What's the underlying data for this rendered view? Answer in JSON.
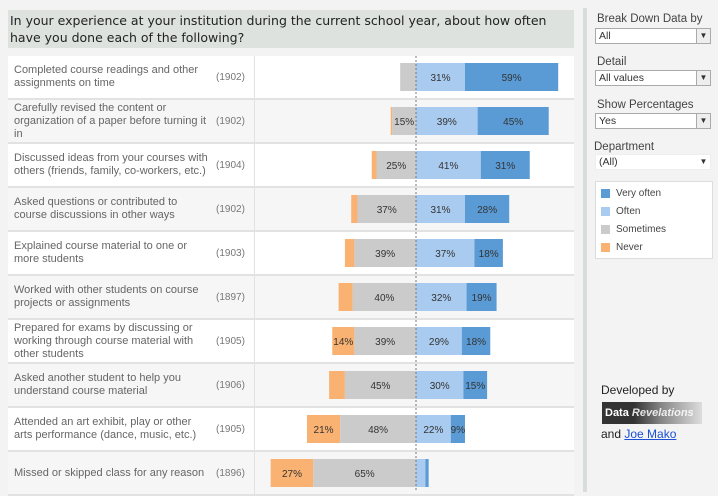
{
  "title": "In your experience at your institution during the current school year, about how often have you done each of the following?",
  "controls": {
    "breakdown": {
      "label": "Break Down Data by",
      "value": "All"
    },
    "detail": {
      "label": "Detail",
      "value": "All values"
    },
    "show_percentages": {
      "label": "Show Percentages",
      "value": "Yes"
    },
    "department": {
      "label": "Department",
      "value": "(All)"
    }
  },
  "legend": [
    {
      "label": "Very often",
      "color": "#5b9bd5"
    },
    {
      "label": "Often",
      "color": "#a9cbef"
    },
    {
      "label": "Sometimes",
      "color": "#cbcbcb"
    },
    {
      "label": "Never",
      "color": "#f9b272"
    }
  ],
  "credits": {
    "developed_by": "Developed by",
    "logo_a": "Data",
    "logo_b": "Revelations",
    "and": "and",
    "author": "Joe Mako"
  },
  "chart_data": {
    "type": "bar",
    "subtype": "diverging-stacked-horizontal",
    "categories": [
      {
        "label": "Completed course readings and other assignments on time",
        "n": "(1902)"
      },
      {
        "label": "Carefully revised the content or organization of a paper before turning it in",
        "n": "(1902)"
      },
      {
        "label": "Discussed ideas from your courses with others (friends, family, co-workers, etc.)",
        "n": "(1904)"
      },
      {
        "label": "Asked questions or contributed to course discussions in other ways",
        "n": "(1902)"
      },
      {
        "label": "Explained course material to one or more students",
        "n": "(1903)"
      },
      {
        "label": "Worked with other students on course projects or assignments",
        "n": "(1897)"
      },
      {
        "label": "Prepared for exams by discussing or working through course material with other students",
        "n": "(1905)"
      },
      {
        "label": "Asked another student to help you understand course material",
        "n": "(1906)"
      },
      {
        "label": "Attended an art exhibit, play or other arts performance (dance, music, etc.)",
        "n": "(1905)"
      },
      {
        "label": "Missed or skipped class for any reason",
        "n": "(1896)"
      }
    ],
    "series": [
      {
        "name": "Never",
        "values": [
          0,
          1,
          3,
          4,
          6,
          9,
          14,
          10,
          21,
          27
        ],
        "labels": [
          "",
          "",
          "",
          "",
          "",
          "",
          "14%",
          "",
          "21%",
          "27%"
        ]
      },
      {
        "name": "Sometimes",
        "values": [
          10,
          15,
          25,
          37,
          39,
          40,
          39,
          45,
          48,
          65
        ],
        "labels": [
          "",
          "15%",
          "25%",
          "37%",
          "39%",
          "40%",
          "39%",
          "45%",
          "48%",
          "65%"
        ]
      },
      {
        "name": "Often",
        "values": [
          31,
          39,
          41,
          31,
          37,
          32,
          29,
          30,
          22,
          6
        ],
        "labels": [
          "31%",
          "39%",
          "41%",
          "31%",
          "37%",
          "32%",
          "29%",
          "30%",
          "22%",
          ""
        ]
      },
      {
        "name": "Very often",
        "values": [
          59,
          45,
          31,
          28,
          18,
          19,
          18,
          15,
          9,
          2
        ],
        "labels": [
          "59%",
          "45%",
          "31%",
          "28%",
          "18%",
          "19%",
          "18%",
          "15%",
          "9%",
          ""
        ]
      }
    ],
    "unit": "%"
  }
}
